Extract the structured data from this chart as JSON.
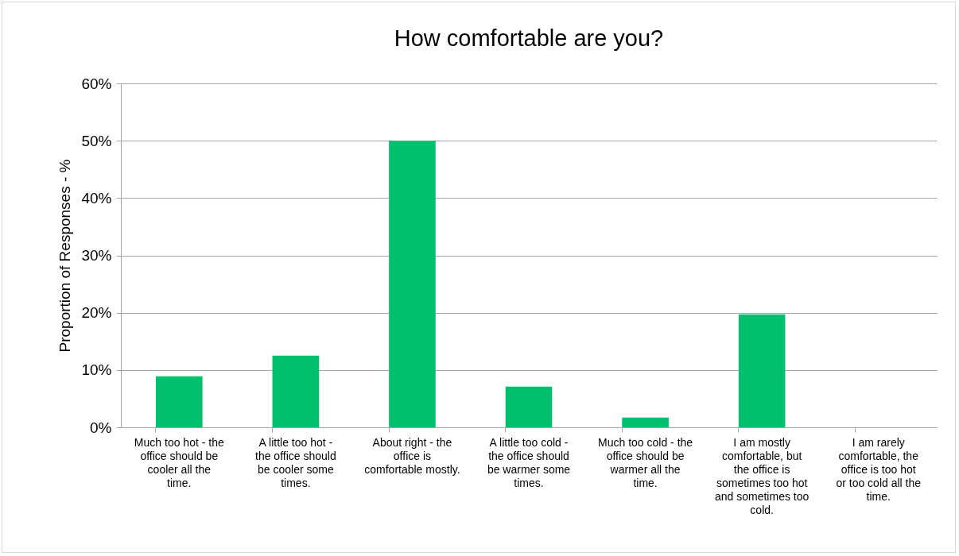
{
  "chart_data": {
    "type": "bar",
    "title": "How comfortable are you?",
    "ylabel": "Proportion of Responses - %",
    "categories": [
      "Much too hot - the office should be cooler all the time.",
      "A little too hot - the office should be cooler some times.",
      "About right - the office is comfortable mostly.",
      "A little too cold - the office should be warmer some times.",
      "Much too cold - the office should be warmer all the time.",
      "I am mostly comfortable, but the office is sometimes too hot and sometimes too cold.",
      "I am rarely comfortable, the office is too hot or too cold all the time."
    ],
    "values": [
      8.9,
      12.5,
      50,
      7.1,
      1.7,
      19.7,
      0
    ],
    "color": "#00bf6f",
    "ylim": [
      0,
      60
    ],
    "yticks": [
      {
        "value": 0,
        "label": "0%"
      },
      {
        "value": 10,
        "label": "10%"
      },
      {
        "value": 20,
        "label": "20%"
      },
      {
        "value": 30,
        "label": "30%"
      },
      {
        "value": 40,
        "label": "40%"
      },
      {
        "value": 50,
        "label": "50%"
      },
      {
        "value": 60,
        "label": "60%"
      }
    ],
    "grid": "y"
  }
}
